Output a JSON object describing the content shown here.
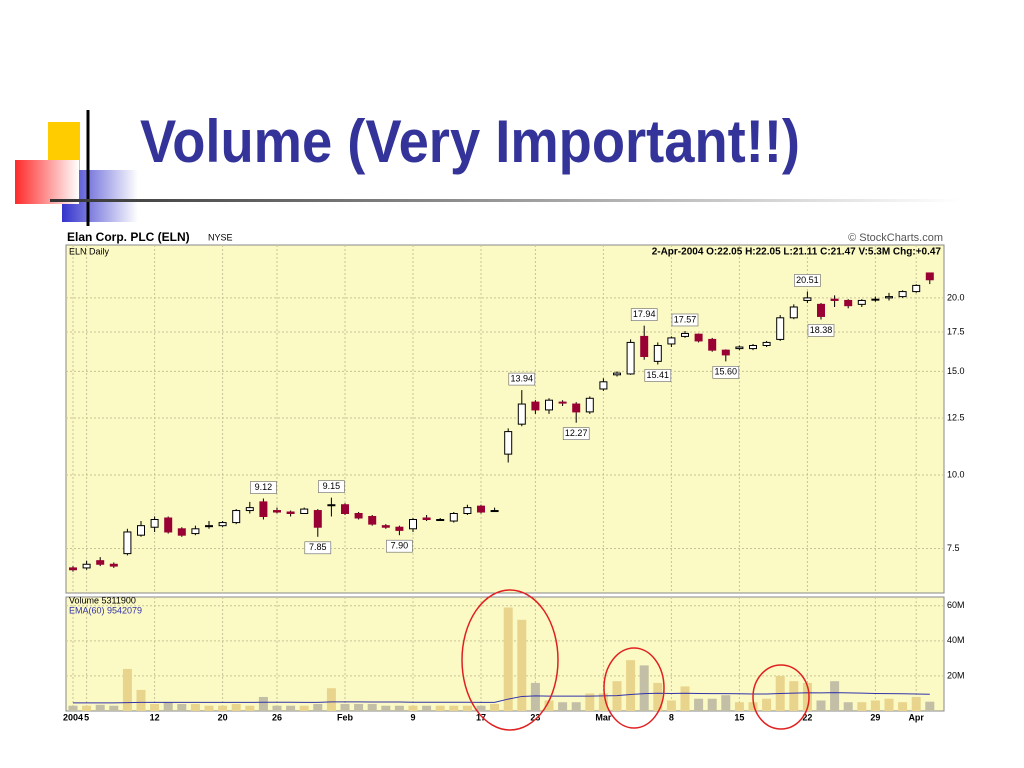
{
  "slide": {
    "title": "Volume (Very Important!!)"
  },
  "chart_data": [
    {
      "type": "candlestick",
      "title": "Elan Corp. PLC (ELN)",
      "exchange": "NYSE",
      "source": "© StockCharts.com",
      "subtitle": "ELN Daily",
      "info": "2-Apr-2004 O:22.05 H:22.05 L:21.11 C:21.47 V:5.3M Chg:+0.47",
      "open": [
        6.95,
        6.95,
        7.15,
        7.05,
        7.35,
        7.9,
        8.15,
        8.45,
        8.1,
        7.95,
        8.2,
        8.2,
        8.3,
        8.7,
        9.0,
        8.7,
        8.65,
        8.6,
        8.7,
        8.9,
        8.9,
        8.6,
        8.5,
        8.2,
        8.15,
        8.1,
        8.45,
        8.4,
        8.35,
        8.6,
        8.85,
        8.7,
        10.85,
        12.2,
        13.3,
        12.9,
        13.3,
        13.2,
        12.8,
        14.0,
        14.8,
        14.85,
        17.2,
        15.6,
        16.7,
        17.2,
        17.35,
        17.0,
        16.3,
        16.4,
        16.4,
        16.6,
        17.0,
        18.5,
        19.8,
        19.5,
        19.9,
        19.8,
        19.5,
        19.9,
        20.0,
        20.1,
        20.5,
        22.05
      ],
      "high": [
        7.0,
        7.15,
        7.25,
        7.1,
        8.1,
        8.35,
        8.5,
        8.5,
        8.15,
        8.2,
        8.35,
        8.35,
        8.75,
        9.0,
        9.12,
        8.8,
        8.7,
        8.8,
        8.75,
        9.15,
        8.95,
        8.65,
        8.55,
        8.25,
        8.2,
        8.45,
        8.55,
        8.45,
        8.65,
        8.9,
        8.9,
        8.8,
        12.0,
        13.94,
        13.4,
        13.5,
        13.4,
        13.3,
        13.6,
        14.6,
        15.0,
        17.0,
        17.94,
        16.8,
        17.2,
        17.57,
        17.4,
        17.1,
        16.35,
        16.6,
        16.7,
        16.9,
        18.7,
        19.5,
        20.51,
        19.6,
        20.2,
        19.9,
        19.9,
        20.1,
        20.4,
        20.6,
        21.1,
        22.05
      ],
      "low": [
        6.85,
        6.9,
        7.0,
        6.95,
        7.3,
        7.85,
        8.0,
        7.95,
        7.85,
        7.9,
        8.1,
        8.15,
        8.25,
        8.6,
        8.4,
        8.6,
        8.5,
        8.6,
        7.85,
        8.5,
        8.55,
        8.4,
        8.2,
        8.1,
        7.9,
        8.0,
        8.35,
        8.35,
        8.3,
        8.55,
        8.6,
        8.65,
        10.5,
        12.1,
        12.7,
        12.7,
        13.1,
        12.27,
        12.7,
        13.9,
        14.7,
        14.8,
        15.7,
        15.41,
        16.5,
        17.1,
        16.8,
        16.2,
        15.6,
        16.3,
        16.3,
        16.5,
        16.9,
        18.4,
        19.6,
        18.38,
        19.3,
        19.2,
        19.3,
        19.7,
        19.8,
        20.0,
        20.4,
        21.11
      ],
      "close": [
        6.9,
        7.05,
        7.05,
        7.0,
        8.0,
        8.2,
        8.4,
        8.0,
        7.9,
        8.1,
        8.2,
        8.3,
        8.7,
        8.8,
        8.5,
        8.65,
        8.6,
        8.75,
        8.15,
        8.9,
        8.6,
        8.45,
        8.25,
        8.15,
        8.05,
        8.4,
        8.4,
        8.4,
        8.6,
        8.8,
        8.65,
        8.7,
        11.85,
        13.2,
        12.9,
        13.4,
        13.25,
        12.8,
        13.5,
        14.4,
        14.9,
        16.8,
        15.9,
        16.6,
        17.1,
        17.4,
        16.9,
        16.3,
        16.0,
        16.5,
        16.6,
        16.8,
        18.5,
        19.3,
        20.0,
        18.6,
        19.8,
        19.4,
        19.8,
        19.9,
        20.1,
        20.5,
        21.0,
        21.47
      ],
      "high_labels": [
        null,
        null,
        null,
        null,
        null,
        null,
        null,
        null,
        null,
        null,
        null,
        null,
        null,
        null,
        "9.12",
        null,
        null,
        null,
        null,
        "9.15",
        null,
        null,
        null,
        null,
        null,
        null,
        null,
        null,
        null,
        null,
        null,
        null,
        null,
        "13.94",
        null,
        null,
        null,
        null,
        null,
        null,
        null,
        null,
        "17.94",
        null,
        null,
        "17.57",
        null,
        null,
        null,
        null,
        null,
        null,
        null,
        null,
        "20.51",
        null,
        null,
        null,
        null,
        null,
        null,
        null,
        null,
        null
      ],
      "low_labels": [
        null,
        null,
        null,
        null,
        null,
        null,
        null,
        null,
        null,
        null,
        null,
        null,
        null,
        null,
        null,
        null,
        null,
        null,
        "7.85",
        null,
        null,
        null,
        null,
        null,
        "7.90",
        null,
        null,
        null,
        null,
        null,
        null,
        null,
        null,
        null,
        null,
        null,
        null,
        "12.27",
        null,
        null,
        null,
        null,
        null,
        "15.41",
        null,
        null,
        null,
        null,
        "15.60",
        null,
        null,
        null,
        null,
        null,
        null,
        "18.38",
        null,
        null,
        null,
        null,
        null,
        null,
        null,
        null
      ],
      "up_color": "#ffffff",
      "down_color": "#990033",
      "ylim": [
        6.3,
        24.6
      ],
      "log": true,
      "yticks": [
        7.5,
        {
          "value": 10,
          "label": "10.0"
        },
        12.5,
        {
          "value": 15,
          "label": "15.0"
        },
        17.5,
        {
          "value": 20,
          "label": "20.0"
        }
      ]
    },
    {
      "type": "bar",
      "title": "Volume 5311900",
      "categories": [
        "2004",
        "5",
        null,
        null,
        null,
        null,
        "12",
        null,
        null,
        null,
        null,
        "20",
        null,
        null,
        null,
        "26",
        null,
        null,
        null,
        null,
        "Feb",
        null,
        null,
        null,
        null,
        "9",
        null,
        null,
        null,
        null,
        "17",
        null,
        null,
        null,
        "23",
        null,
        null,
        null,
        null,
        "Mar",
        null,
        null,
        null,
        null,
        "8",
        null,
        null,
        null,
        null,
        "15",
        null,
        null,
        null,
        null,
        "22",
        null,
        null,
        null,
        null,
        "29",
        null,
        null,
        "Apr",
        null
      ],
      "values": [
        3,
        3,
        3.5,
        3,
        24,
        12,
        4,
        5,
        4,
        4,
        3,
        3,
        4,
        3,
        8,
        3,
        3,
        3,
        4,
        13,
        4,
        4,
        4,
        3,
        3,
        3,
        3,
        3,
        3,
        3,
        3,
        4,
        59,
        52,
        16,
        6,
        5,
        5,
        10,
        10,
        17,
        29,
        26,
        16,
        6,
        14,
        7,
        7,
        9,
        5,
        5,
        7,
        20,
        17,
        16,
        6,
        17,
        5,
        5,
        6,
        7,
        5,
        8,
        5.3
      ],
      "color": "#e8d48c",
      "down_color": "#c2bfa6",
      "ema": {
        "name": "EMA(60) 9542079",
        "color": "#3333aa",
        "values": [
          4.6,
          4.6,
          4.6,
          4.6,
          4.8,
          4.9,
          4.9,
          4.9,
          4.9,
          4.9,
          4.9,
          4.9,
          4.9,
          4.9,
          5.0,
          5.0,
          5.0,
          4.9,
          4.9,
          5.2,
          5.2,
          5.2,
          5.1,
          5.1,
          5.1,
          5.0,
          5.0,
          5.0,
          5.0,
          5.0,
          4.9,
          4.9,
          6.8,
          8.3,
          8.6,
          8.5,
          8.5,
          8.5,
          8.5,
          8.6,
          8.8,
          9.4,
          9.9,
          10.1,
          10.0,
          10.1,
          10.0,
          9.9,
          9.9,
          9.8,
          9.7,
          9.7,
          10.0,
          10.2,
          10.4,
          10.3,
          10.5,
          10.3,
          10.2,
          10.0,
          9.9,
          9.8,
          9.7,
          9.54
        ]
      },
      "ylim": [
        0,
        65
      ],
      "yticks": [
        {
          "value": 20,
          "label": "20M"
        },
        {
          "value": 40,
          "label": "40M"
        },
        {
          "value": 60,
          "label": "60M"
        }
      ]
    }
  ]
}
